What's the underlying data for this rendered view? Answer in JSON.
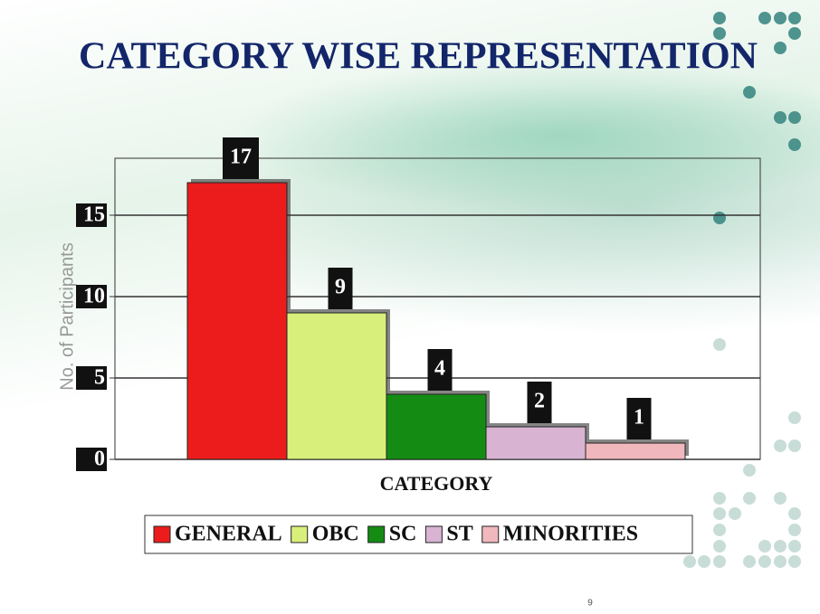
{
  "chart_data": {
    "type": "bar",
    "title": "CATEGORY WISE REPRESENTATION",
    "x_label": "CATEGORY",
    "y_label": "No. of Participants",
    "series": [
      {
        "name": "GENERAL",
        "color": "#ec1c1c",
        "values": [
          17
        ]
      },
      {
        "name": "OBC",
        "color": "#d9ef7c",
        "values": [
          9
        ]
      },
      {
        "name": "SC",
        "color": "#148c14",
        "values": [
          4
        ]
      },
      {
        "name": "ST",
        "color": "#d8b4d2",
        "values": [
          2
        ]
      },
      {
        "name": "MINORITIES",
        "color": "#f0b8bc",
        "values": [
          1
        ]
      }
    ],
    "ylim": [
      0,
      18.5
    ],
    "yticks": [
      0,
      5,
      10,
      15
    ],
    "grid": true,
    "legend": "bottom"
  },
  "page_number": "9"
}
